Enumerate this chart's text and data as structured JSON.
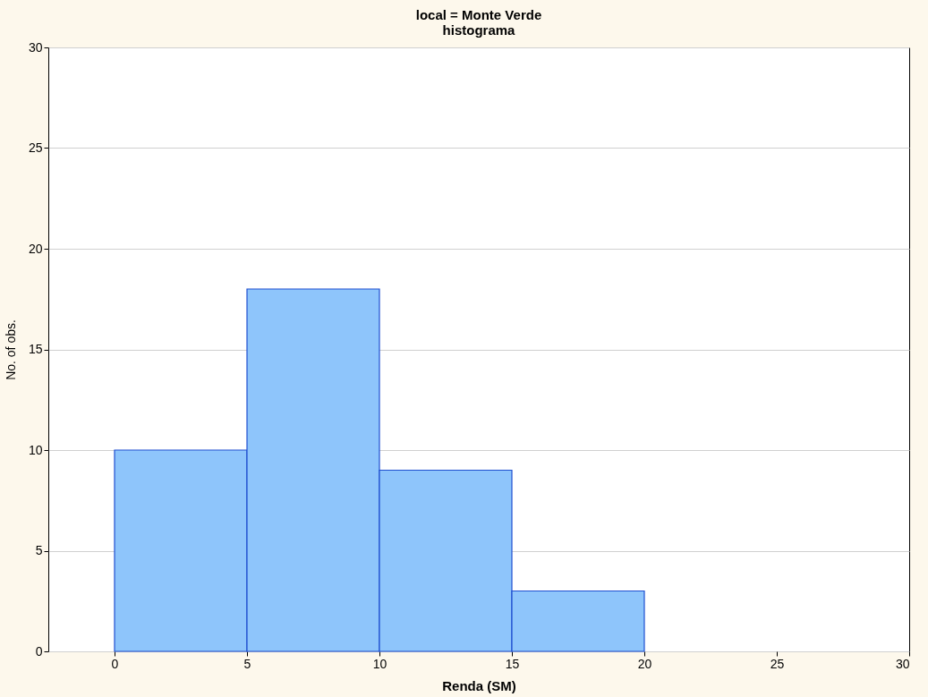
{
  "chart_data": {
    "type": "histogram",
    "title": "local = Monte Verde",
    "subtitle": "histograma",
    "xlabel": "Renda (SM)",
    "ylabel": "No. of obs.",
    "bins": [
      0,
      5,
      10,
      15,
      20
    ],
    "values": [
      10,
      18,
      9,
      3
    ],
    "color": "#8ec5fb",
    "xlim": [
      -2.5,
      30
    ],
    "xticks": [
      0,
      5,
      10,
      15,
      20,
      25,
      30
    ],
    "ylim": [
      0,
      30
    ],
    "yticks": [
      0,
      5,
      10,
      15,
      20,
      25,
      30
    ],
    "grid": "y"
  }
}
